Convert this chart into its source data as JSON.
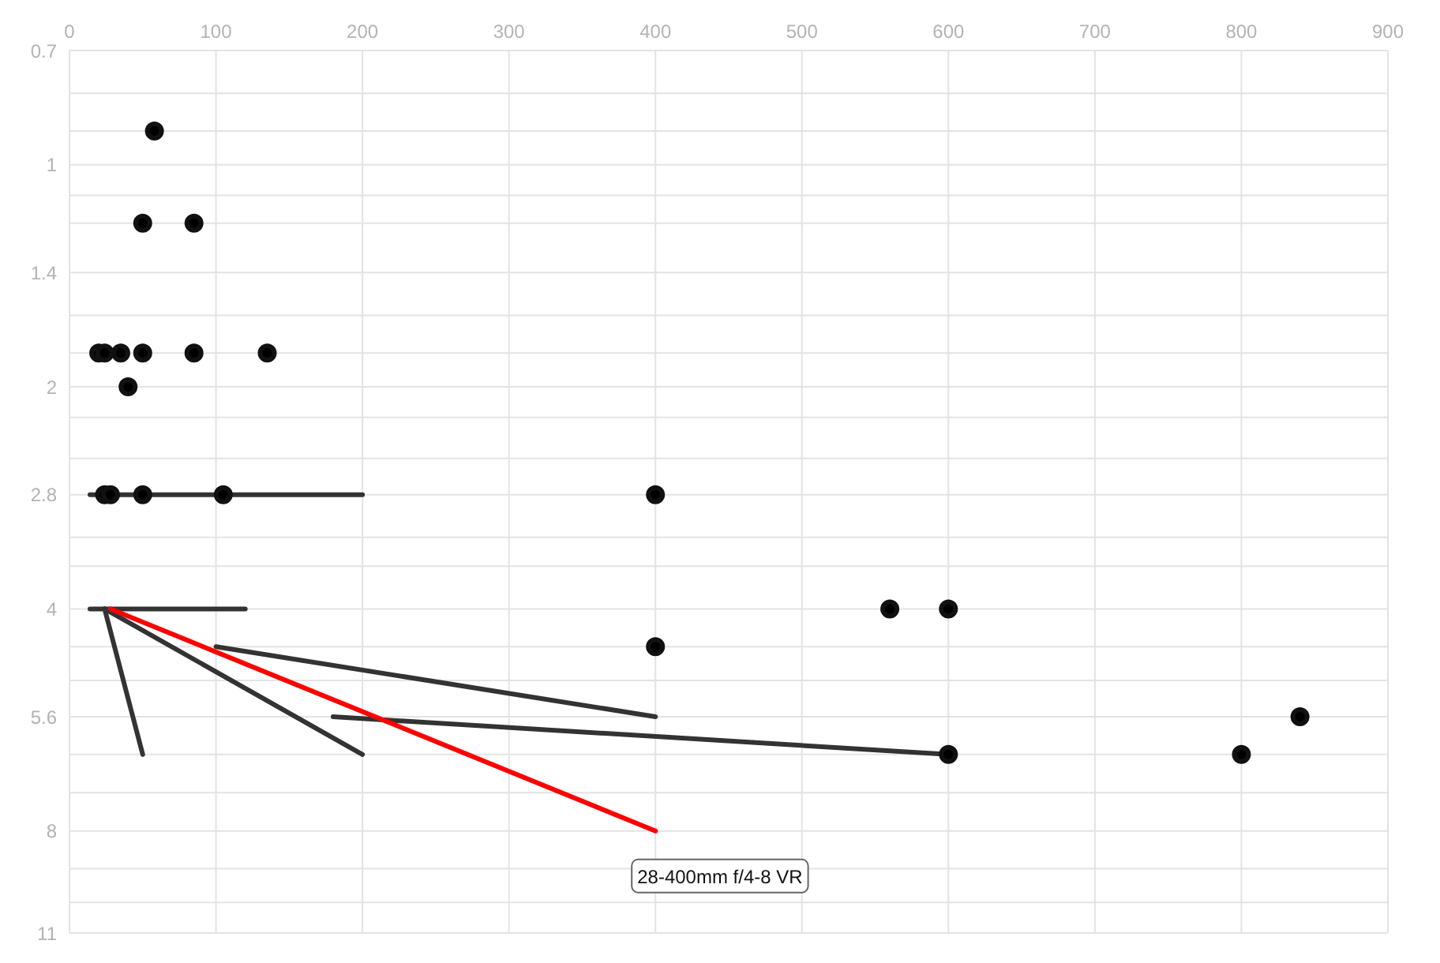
{
  "chart_data": {
    "type": "scatter",
    "xlim": [
      0,
      900
    ],
    "xticks": [
      0,
      100,
      200,
      300,
      400,
      500,
      600,
      700,
      800,
      900
    ],
    "ylim": [
      11,
      0.7
    ],
    "yticks": [
      0.7,
      {
        "value": 0.8,
        "label": null
      },
      {
        "value": 0.9,
        "label": null
      },
      1,
      {
        "value": 1.1,
        "label": null
      },
      {
        "value": 1.2,
        "label": null
      },
      1.4,
      {
        "value": 1.6,
        "label": null
      },
      {
        "value": 1.8,
        "label": null
      },
      2,
      {
        "value": 2.2,
        "label": null
      },
      {
        "value": 2.5,
        "label": null
      },
      2.8,
      {
        "value": 3.2,
        "label": null
      },
      {
        "value": 3.5,
        "label": null
      },
      4,
      {
        "value": 4.5,
        "label": null
      },
      {
        "value": 5,
        "label": null
      },
      5.6,
      {
        "value": 6.3,
        "label": null
      },
      {
        "value": 7.1,
        "label": null
      },
      8,
      {
        "value": 9,
        "label": null
      },
      {
        "value": 10,
        "label": null
      },
      11
    ],
    "log": "y",
    "grid": true,
    "series": [
      {
        "color": "#111111",
        "marker": "circle",
        "x": [
          58,
          50,
          85,
          20,
          24,
          35,
          50,
          85,
          135,
          40,
          24,
          28,
          50,
          105,
          400,
          560,
          600,
          400,
          600,
          800,
          840
        ],
        "values": [
          0.9,
          1.2,
          1.2,
          1.8,
          1.8,
          1.8,
          1.8,
          1.8,
          1.8,
          2,
          2.8,
          2.8,
          2.8,
          2.8,
          2.8,
          4,
          4,
          4.5,
          6.3,
          6.3,
          5.6
        ]
      },
      {
        "type": "line",
        "color": "#333333",
        "marker": "none",
        "x": [
          14,
          200
        ],
        "values": [
          2.8,
          2.8
        ]
      },
      {
        "type": "line",
        "color": "#333333",
        "marker": "none",
        "x": [
          14,
          120
        ],
        "values": [
          4,
          4
        ]
      },
      {
        "type": "line",
        "color": "#333333",
        "marker": "none",
        "x": [
          24,
          50
        ],
        "values": [
          4,
          6.3
        ]
      },
      {
        "type": "line",
        "color": "#333333",
        "marker": "none",
        "x": [
          24,
          200
        ],
        "values": [
          4,
          6.3
        ]
      },
      {
        "type": "line",
        "color": "#333333",
        "marker": "none",
        "x": [
          100,
          400
        ],
        "values": [
          4.5,
          5.6
        ]
      },
      {
        "type": "line",
        "color": "#333333",
        "marker": "none",
        "x": [
          180,
          600
        ],
        "values": [
          5.6,
          6.3
        ]
      },
      {
        "type": "line",
        "name": "28-400mm f/4-8 VR",
        "color": "#ff0000",
        "marker": "none",
        "x": [
          28,
          400
        ],
        "values": [
          4,
          8
        ]
      }
    ]
  }
}
